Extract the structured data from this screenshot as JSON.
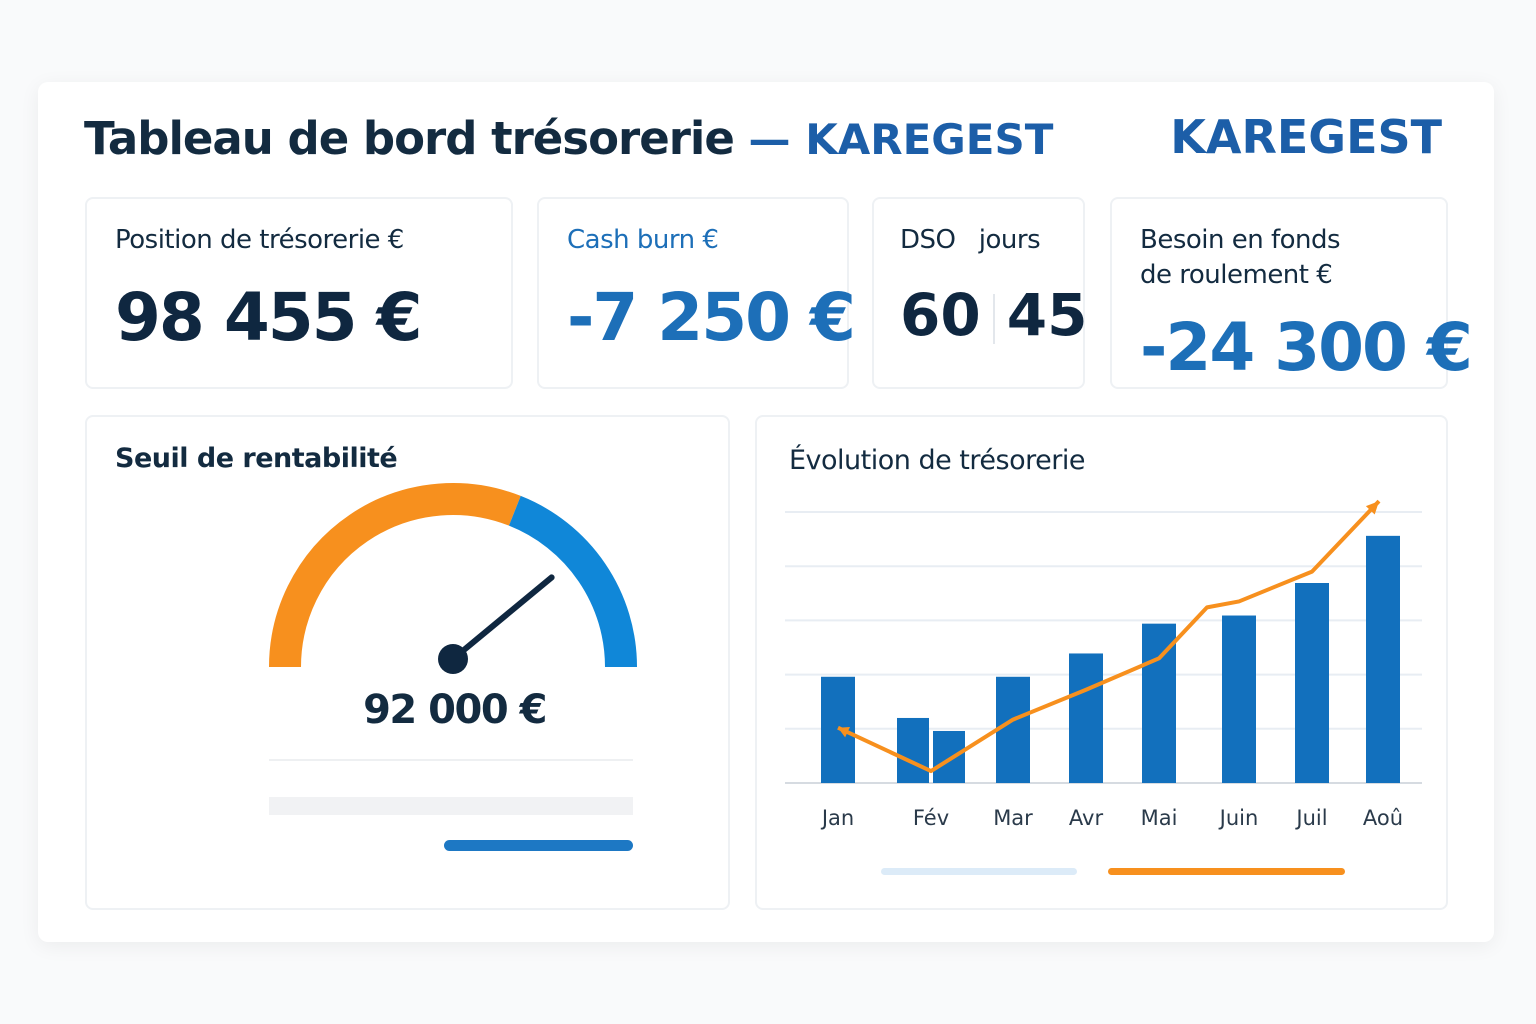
{
  "header": {
    "title": "Tableau de bord trésorerie",
    "separator": "—",
    "brand_in_title": "KAREGEST",
    "logo": "KAREGEST"
  },
  "kpis": [
    {
      "label": "Position de trésorerie €",
      "value": "98 455 €"
    },
    {
      "label": "Cash burn €",
      "value": "-7 250 €"
    },
    {
      "label": "DSO",
      "unit": "jours",
      "value_a": "60",
      "value_b": "45"
    },
    {
      "label_line1": "Besoin en fonds",
      "label_line2": "de roulement €",
      "value": "-24 300 €"
    }
  ],
  "gauge": {
    "title": "Seuil de rentabilité",
    "value": "92 000 €",
    "orange_fraction": 0.62,
    "needle_fraction": 0.78,
    "progress_fraction": 0.52
  },
  "colors": {
    "brand": "#1c5ea8",
    "bar": "#1270bd",
    "line": "#f7901e",
    "gauge_blue": "#1087d8",
    "dark": "#0f2740"
  },
  "chart_data": {
    "type": "bar",
    "title": "Évolution de trésorerie",
    "categories": [
      "Jan",
      "Fév",
      "Mar",
      "Avr",
      "Mai",
      "Juin",
      "Juil",
      "Aoû"
    ],
    "bars": [
      {
        "category": "Jan",
        "value": 1.96
      },
      {
        "category": "Fév",
        "value": 1.2
      },
      {
        "category": "Fév",
        "value": 0.96
      },
      {
        "category": "Mar",
        "value": 1.96
      },
      {
        "category": "Avr",
        "value": 2.39
      },
      {
        "category": "Mai",
        "value": 2.94
      },
      {
        "category": "Juin",
        "value": 3.09
      },
      {
        "category": "Juil",
        "value": 3.69
      },
      {
        "category": "Aoû",
        "value": 4.56
      }
    ],
    "line": {
      "type": "line-arrow",
      "points": [
        [
          0,
          1.02
        ],
        [
          1,
          0.22
        ],
        [
          2,
          1.17
        ],
        [
          3,
          1.72
        ],
        [
          4,
          2.3
        ],
        [
          4.6,
          3.24
        ],
        [
          5,
          3.35
        ],
        [
          6,
          3.9
        ],
        [
          7,
          5.2
        ]
      ]
    },
    "ylim": [
      0,
      5
    ],
    "grid": true,
    "axis_labels_shown": false
  }
}
